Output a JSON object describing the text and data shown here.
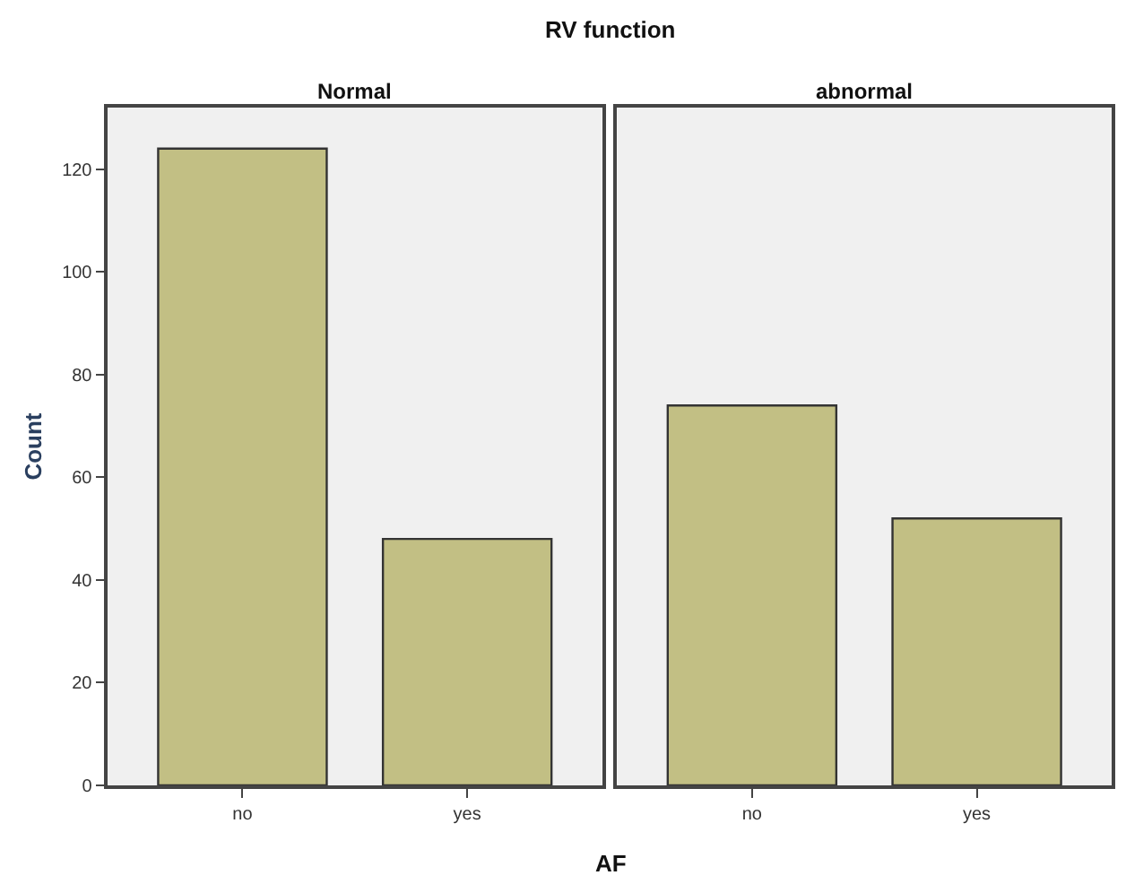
{
  "chart_data": [
    {
      "type": "bar",
      "title": "Normal",
      "xlabel": "AF",
      "ylabel": "Count",
      "annotations": [
        "RV function"
      ],
      "categories": [
        "no",
        "yes"
      ],
      "values": [
        124,
        48
      ],
      "color": "#c2bf84",
      "ylim": [
        0,
        132
      ],
      "yticks": [
        0,
        20,
        40,
        60,
        80,
        100,
        120
      ],
      "grid": false
    },
    {
      "type": "bar",
      "title": "abnormal",
      "categories": [
        "no",
        "yes"
      ],
      "values": [
        74,
        52
      ],
      "color": "#c2bf84",
      "ylim": [
        0,
        132
      ],
      "yticks": [
        0,
        20,
        40,
        60,
        80,
        100,
        120
      ],
      "grid": false,
      "tick_labels": "x"
    }
  ]
}
